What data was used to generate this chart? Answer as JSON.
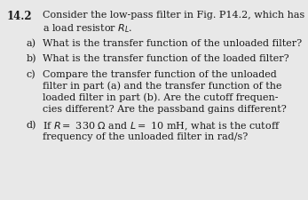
{
  "background_color": "#e8e8e8",
  "text_color": "#1a1a1a",
  "figsize": [
    3.47,
    2.25
  ],
  "dpi": 100,
  "problem_number": "14.2",
  "intro_line1": "Consider the low-pass filter in Fig. P14.2, which has",
  "intro_line2": "a load resistor $R_L$.",
  "part_a_label": "a)",
  "part_a_text": "What is the transfer function of the unloaded filter?",
  "part_b_label": "b)",
  "part_b_text": "What is the transfer function of the loaded filter?",
  "part_c_label": "c)",
  "part_c_line1": "Compare the transfer function of the unloaded",
  "part_c_line2": "filter in part (a) and the transfer function of the",
  "part_c_line3": "loaded filter in part (b). Are the cutoff frequen-",
  "part_c_line4": "cies different? Are the passband gains different?",
  "part_d_label": "d)",
  "part_d_line1": "If $R =$ 330 $\\Omega$ and $L =$ 10 mH, what is the cutoff",
  "part_d_line2": "frequency of the unloaded filter in rad/s?",
  "font_size_bold": 8.5,
  "font_size_text": 8.0
}
